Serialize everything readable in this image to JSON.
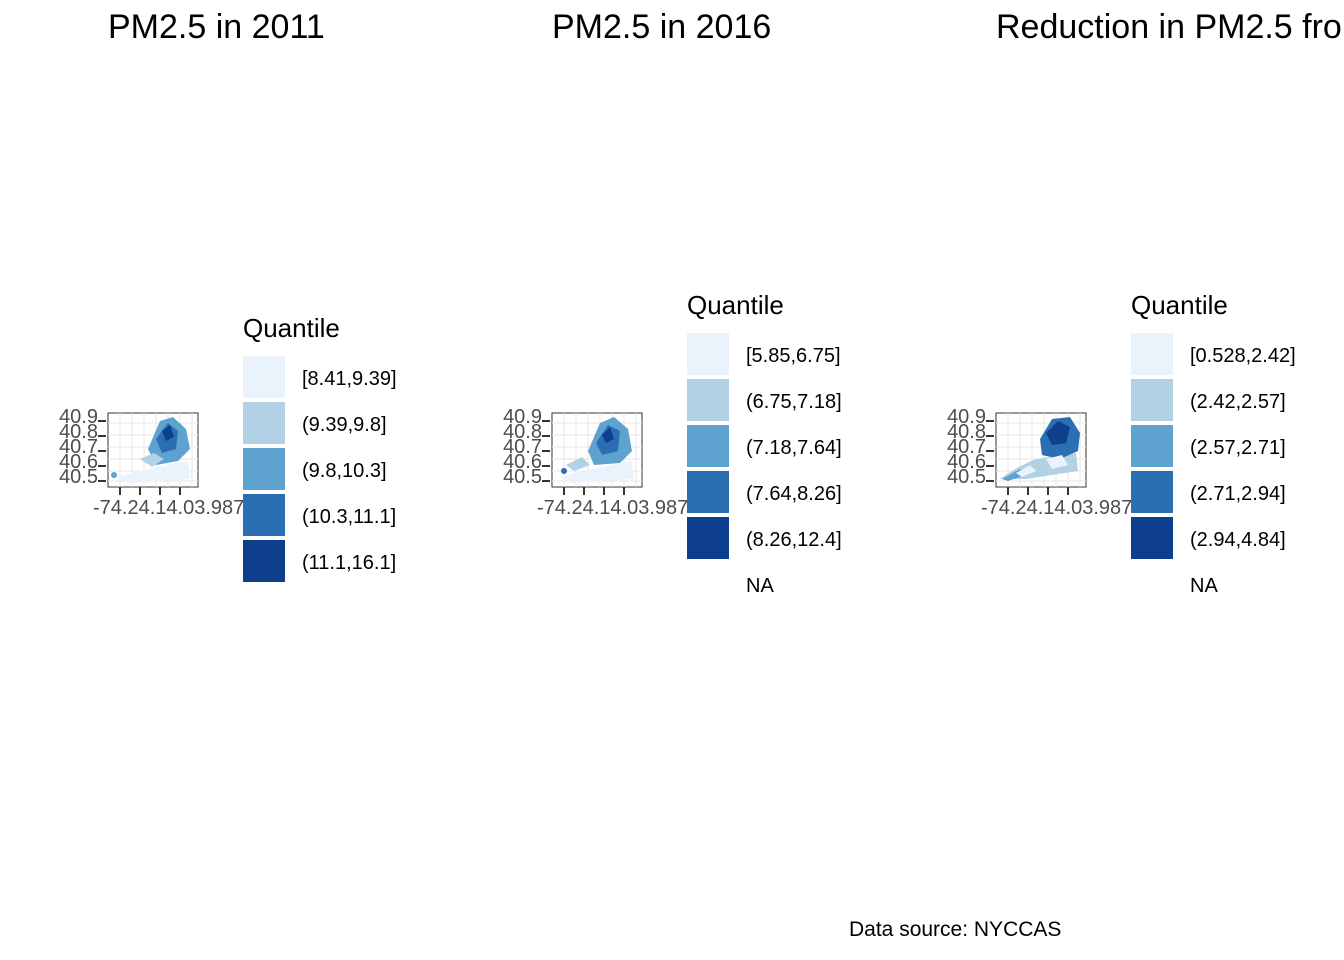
{
  "panels": [
    {
      "title": "PM2.5 in 2011",
      "y_ticks": [
        "40.9",
        "40.8",
        "40.7",
        "40.6",
        "40.5"
      ],
      "x_ticks_text": "-74.24.14.03.987",
      "legend": {
        "title": "Quantile",
        "items": [
          {
            "label": "[8.41,9.39]",
            "color": "#eaf2fc"
          },
          {
            "label": "(9.39,9.8]",
            "color": "#b3d1e4"
          },
          {
            "label": "(9.8,10.3]",
            "color": "#5ea3cf"
          },
          {
            "label": "(10.3,11.1]",
            "color": "#2b6fb2"
          },
          {
            "label": "(11.1,16.1]",
            "color": "#0d3f8c"
          }
        ]
      }
    },
    {
      "title": "PM2.5 in 2016",
      "y_ticks": [
        "40.9",
        "40.8",
        "40.7",
        "40.6",
        "40.5"
      ],
      "x_ticks_text": "-74.24.14.03.987",
      "legend": {
        "title": "Quantile",
        "items": [
          {
            "label": "[5.85,6.75]",
            "color": "#eaf2fc"
          },
          {
            "label": "(6.75,7.18]",
            "color": "#b3d1e4"
          },
          {
            "label": "(7.18,7.64]",
            "color": "#5ea3cf"
          },
          {
            "label": "(7.64,8.26]",
            "color": "#2b6fb2"
          },
          {
            "label": "(8.26,12.4]",
            "color": "#0d3f8c"
          },
          {
            "label": "NA",
            "color": "#ffffff"
          }
        ]
      }
    },
    {
      "title": "Reduction in PM2.5 fro",
      "y_ticks": [
        "40.9",
        "40.8",
        "40.7",
        "40.6",
        "40.5"
      ],
      "x_ticks_text": "-74.24.14.03.987",
      "legend": {
        "title": "Quantile",
        "items": [
          {
            "label": "[0.528,2.42]",
            "color": "#eaf2fc"
          },
          {
            "label": "(2.42,2.57]",
            "color": "#b3d1e4"
          },
          {
            "label": "(2.57,2.71]",
            "color": "#5ea3cf"
          },
          {
            "label": "(2.71,2.94]",
            "color": "#2b6fb2"
          },
          {
            "label": "(2.94,4.84]",
            "color": "#0d3f8c"
          },
          {
            "label": "NA",
            "color": "#ffffff"
          }
        ]
      }
    }
  ],
  "caption": "Data source: NYCCAS"
}
